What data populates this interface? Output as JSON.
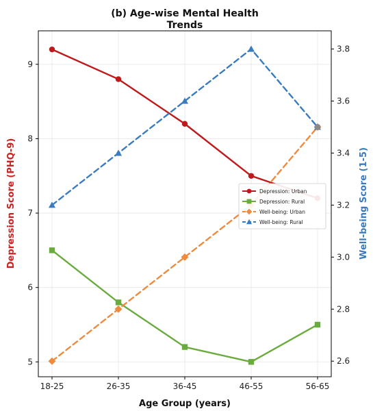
{
  "chart_data": {
    "type": "line",
    "title_lines": [
      "(b) Age-wise Mental Health",
      "Trends"
    ],
    "xlabel": "Age Group (years)",
    "ylabel_left": "Depression Score (PHQ-9)",
    "ylabel_right": "Well-being Score (1-5)",
    "categories": [
      "18-25",
      "26-35",
      "36-45",
      "46-55",
      "56-65"
    ],
    "ylim_left": [
      4.8,
      9.45
    ],
    "ylim_right": [
      2.54,
      3.87
    ],
    "yticks_left": [
      5,
      6,
      7,
      8,
      9
    ],
    "yticks_right": [
      2.6,
      2.8,
      3.0,
      3.2,
      3.4,
      3.6,
      3.8
    ],
    "yticks_right_labels": [
      "2.6",
      "2.8",
      "3.0",
      "3.2",
      "3.4",
      "3.6",
      "3.8"
    ],
    "grid": true,
    "legend_position": "center-right",
    "colors": {
      "left_axis_label": "#cc2222",
      "right_axis_label": "#3a7bbf"
    },
    "series": [
      {
        "name": "Depression: Urban",
        "axis": "left",
        "values": [
          9.2,
          8.8,
          8.2,
          7.5,
          7.2
        ],
        "color": "#c0191c",
        "dash": "solid",
        "marker": "circle"
      },
      {
        "name": "Depression: Rural",
        "axis": "left",
        "values": [
          6.5,
          5.8,
          5.2,
          5.0,
          5.5
        ],
        "color": "#6aab3e",
        "dash": "solid",
        "marker": "square"
      },
      {
        "name": "Well-being: Urban",
        "axis": "right",
        "values": [
          2.6,
          2.8,
          3.0,
          3.2,
          3.5
        ],
        "color": "#f08a3c",
        "dash": "dashed",
        "marker": "diamond"
      },
      {
        "name": "Well-being: Rural",
        "axis": "right",
        "values": [
          3.2,
          3.4,
          3.6,
          3.8,
          3.5
        ],
        "color": "#3a7bbf",
        "dash": "dashed",
        "marker": "triangle"
      }
    ]
  }
}
